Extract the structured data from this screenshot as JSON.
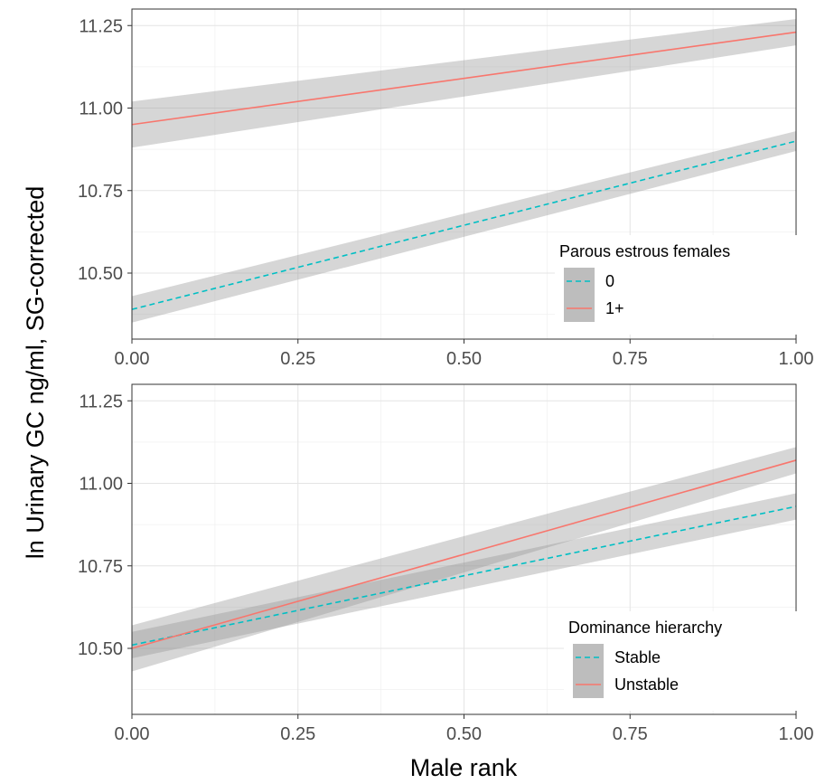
{
  "figure": {
    "ylabel": "ln Urinary GC ng/ml, SG-corrected",
    "xlabel": "Male rank"
  },
  "chart_data": [
    {
      "type": "line",
      "xlabel": "",
      "ylabel": "",
      "xlim": [
        0,
        1
      ],
      "ylim": [
        10.3,
        11.3
      ],
      "xticks": [
        0,
        0.25,
        0.5,
        0.75,
        1
      ],
      "xtick_labels": [
        "0.00",
        "0.25",
        "0.50",
        "0.75",
        "1.00"
      ],
      "yticks": [
        10.5,
        10.75,
        11.0,
        11.25
      ],
      "ytick_labels": [
        "10.50",
        "10.75",
        "11.00",
        "11.25"
      ],
      "grid": true,
      "legend": {
        "title": "Parous estrous females",
        "position": "bottom-right"
      },
      "series": [
        {
          "name": "0",
          "color": "#00BFC4",
          "linestyle": "dashed",
          "x": [
            0,
            1
          ],
          "y": [
            10.39,
            10.9
          ],
          "ci_lower": [
            10.35,
            10.87
          ],
          "ci_upper": [
            10.43,
            10.93
          ]
        },
        {
          "name": "1+",
          "color": "#F8766D",
          "linestyle": "solid",
          "x": [
            0,
            1
          ],
          "y": [
            10.95,
            11.23
          ],
          "ci_lower": [
            10.88,
            11.19
          ],
          "ci_upper": [
            11.02,
            11.27
          ]
        }
      ]
    },
    {
      "type": "line",
      "xlabel": "Male rank",
      "ylabel": "",
      "xlim": [
        0,
        1
      ],
      "ylim": [
        10.3,
        11.3
      ],
      "xticks": [
        0,
        0.25,
        0.5,
        0.75,
        1
      ],
      "xtick_labels": [
        "0.00",
        "0.25",
        "0.50",
        "0.75",
        "1.00"
      ],
      "yticks": [
        10.5,
        10.75,
        11.0,
        11.25
      ],
      "ytick_labels": [
        "10.50",
        "10.75",
        "11.00",
        "11.25"
      ],
      "grid": true,
      "legend": {
        "title": "Dominance hierarchy",
        "position": "bottom-right"
      },
      "series": [
        {
          "name": "Stable",
          "color": "#00BFC4",
          "linestyle": "dashed",
          "x": [
            0,
            1
          ],
          "y": [
            10.51,
            10.93
          ],
          "ci_lower": [
            10.47,
            10.89
          ],
          "ci_upper": [
            10.55,
            10.97
          ]
        },
        {
          "name": "Unstable",
          "color": "#F8766D",
          "linestyle": "solid",
          "x": [
            0,
            1
          ],
          "y": [
            10.5,
            11.07
          ],
          "ci_lower": [
            10.43,
            11.03
          ],
          "ci_upper": [
            10.57,
            11.11
          ]
        }
      ]
    }
  ]
}
